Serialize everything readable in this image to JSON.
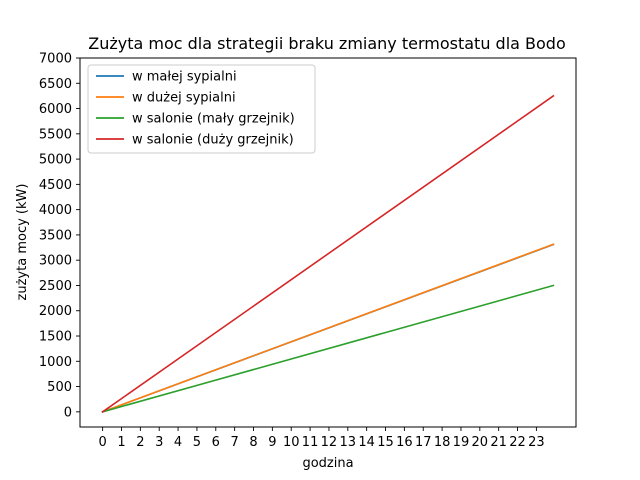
{
  "chart_data": {
    "type": "line",
    "title": "Zużyta moc dla strategii braku zmiany termostatu dla Bodo",
    "xlabel": "godzina",
    "ylabel": "zużyta mocy (kW)",
    "x": [
      0,
      23.9
    ],
    "xticks": [
      0,
      1,
      2,
      3,
      4,
      5,
      6,
      7,
      8,
      9,
      10,
      11,
      12,
      13,
      14,
      15,
      16,
      17,
      18,
      19,
      20,
      21,
      22,
      23
    ],
    "yticks": [
      0,
      500,
      1000,
      1500,
      2000,
      2500,
      3000,
      3500,
      4000,
      4500,
      5000,
      5500,
      6000,
      6500,
      7000
    ],
    "xlim": [
      -1.2,
      25.1
    ],
    "ylim": [
      -300,
      7000
    ],
    "grid": false,
    "legend_position": "top-left",
    "series": [
      {
        "name": "w małej sypialni",
        "color": "#1f77b4",
        "values": [
          0,
          3310
        ]
      },
      {
        "name": "w dużej sypialni",
        "color": "#ff7f0e",
        "values": [
          0,
          3315
        ]
      },
      {
        "name": "w salonie (mały grzejnik)",
        "color": "#2ca02c",
        "values": [
          0,
          2500
        ]
      },
      {
        "name": "w salonie (duży grzejnik)",
        "color": "#d62728",
        "values": [
          0,
          6250
        ]
      }
    ]
  }
}
